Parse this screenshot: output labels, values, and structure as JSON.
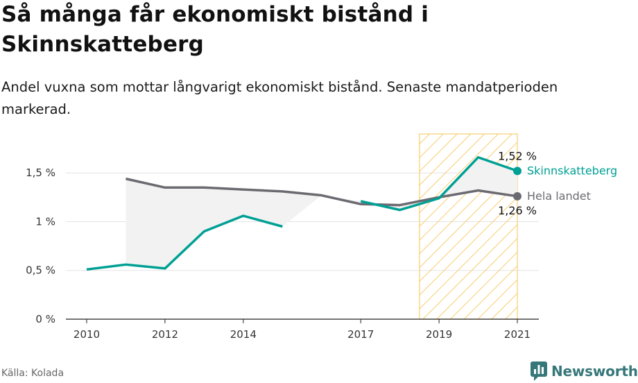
{
  "title": "Så många får ekonomiskt bistånd i Skinnskatteberg",
  "subtitle": "Andel vuxna som mottar långvarigt ekonomiskt bistånd. Senaste mandatperioden markerad.",
  "source": "Källa: Kolada",
  "brand": "Newsworthy",
  "colors": {
    "municipality": "#00a094",
    "national": "#6b6a70",
    "highlight": "#f7cd6d",
    "fill": "#f2f2f2"
  },
  "chart_data": {
    "type": "line",
    "xlim": [
      2010,
      2021
    ],
    "ylim": [
      0,
      1.9
    ],
    "x_ticks": [
      {
        "value": 2010,
        "label": "2010"
      },
      {
        "value": 2012,
        "label": "2012"
      },
      {
        "value": 2014,
        "label": "2014"
      },
      {
        "value": 2017,
        "label": "2017"
      },
      {
        "value": 2019,
        "label": "2019"
      },
      {
        "value": 2021,
        "label": "2021"
      }
    ],
    "y_ticks": [
      {
        "value": 0,
        "label": "0 %"
      },
      {
        "value": 0.5,
        "label": "0,5 %"
      },
      {
        "value": 1,
        "label": "1 %"
      },
      {
        "value": 1.5,
        "label": "1,5 %"
      }
    ],
    "highlight_period": [
      2018.5,
      2021
    ],
    "series": [
      {
        "name": "Skinnskatteberg",
        "key": "municipality",
        "end_value_label": "1,52 %",
        "x": [
          2010,
          2011,
          2012,
          2013,
          2014,
          2015,
          2016,
          2017,
          2018,
          2019,
          2020,
          2021
        ],
        "values": [
          0.51,
          0.56,
          0.52,
          0.9,
          1.06,
          0.95,
          null,
          1.21,
          1.12,
          1.24,
          1.66,
          1.52
        ]
      },
      {
        "name": "Hela landet",
        "key": "national",
        "end_value_label": "1,26 %",
        "x": [
          2011,
          2012,
          2013,
          2014,
          2015,
          2016,
          2017,
          2018,
          2019,
          2020,
          2021
        ],
        "values": [
          1.44,
          1.35,
          1.35,
          1.33,
          1.31,
          1.27,
          1.18,
          1.17,
          1.25,
          1.32,
          1.26
        ]
      }
    ]
  }
}
